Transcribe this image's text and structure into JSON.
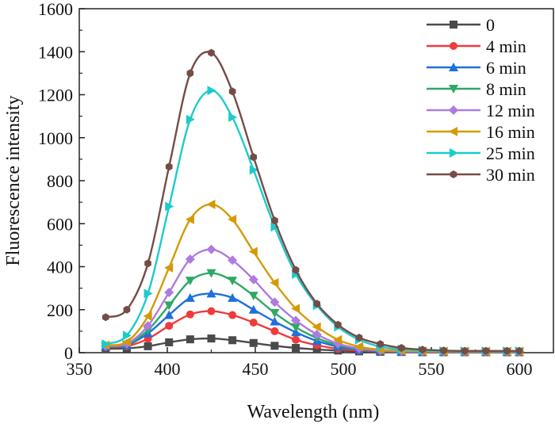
{
  "chart_data": {
    "type": "line",
    "title": "",
    "xlabel": "Wavelength (nm)",
    "ylabel": "Fluorescence intensity",
    "xlim": [
      350,
      610
    ],
    "ylim": [
      0,
      1600
    ],
    "xticks": [
      350,
      400,
      450,
      500,
      550,
      600
    ],
    "yticks": [
      0,
      200,
      400,
      600,
      800,
      1000,
      1200,
      1400,
      1600
    ],
    "grid": false,
    "legend_position": "top-right",
    "x": [
      365,
      377,
      389,
      401,
      413,
      425,
      437,
      449,
      461,
      473,
      485,
      497,
      509,
      521,
      533,
      545,
      557,
      569,
      581,
      593,
      600
    ],
    "series": [
      {
        "name": "0",
        "color": "#4a4a4a",
        "marker": "square",
        "values": [
          18,
          20,
          30,
          48,
          62,
          66,
          58,
          45,
          32,
          22,
          15,
          10,
          6,
          4,
          3,
          2,
          2,
          2,
          2,
          2,
          2
        ]
      },
      {
        "name": "4 min",
        "color": "#ef3b3b",
        "marker": "circle",
        "values": [
          25,
          30,
          65,
          125,
          178,
          193,
          175,
          140,
          100,
          60,
          35,
          18,
          10,
          6,
          4,
          3,
          3,
          3,
          3,
          3,
          3
        ]
      },
      {
        "name": "6 min",
        "color": "#1f6fdc",
        "marker": "triangle-up",
        "values": [
          28,
          35,
          90,
          175,
          255,
          275,
          255,
          200,
          145,
          95,
          55,
          28,
          14,
          8,
          5,
          4,
          4,
          4,
          4,
          4,
          4
        ]
      },
      {
        "name": "8 min",
        "color": "#2ea866",
        "marker": "triangle-down",
        "values": [
          30,
          38,
          105,
          220,
          335,
          370,
          335,
          265,
          185,
          118,
          68,
          35,
          17,
          9,
          6,
          5,
          5,
          5,
          5,
          5,
          5
        ]
      },
      {
        "name": "12 min",
        "color": "#ae7be0",
        "marker": "diamond",
        "values": [
          32,
          42,
          125,
          280,
          435,
          480,
          430,
          340,
          235,
          150,
          85,
          42,
          20,
          10,
          7,
          5,
          5,
          5,
          5,
          5,
          5
        ]
      },
      {
        "name": "16 min",
        "color": "#d49a06",
        "marker": "triangle-left",
        "values": [
          35,
          50,
          170,
          395,
          620,
          690,
          620,
          470,
          325,
          205,
          120,
          60,
          28,
          14,
          9,
          7,
          6,
          6,
          6,
          6,
          6
        ]
      },
      {
        "name": "25 min",
        "color": "#1ccbcb",
        "marker": "triangle-right",
        "values": [
          40,
          80,
          275,
          680,
          1085,
          1220,
          1095,
          850,
          585,
          365,
          220,
          120,
          60,
          28,
          15,
          10,
          8,
          7,
          7,
          7,
          7
        ]
      },
      {
        "name": "30 min",
        "color": "#754c47",
        "marker": "hexagon",
        "values": [
          165,
          200,
          415,
          865,
          1300,
          1395,
          1215,
          910,
          615,
          385,
          228,
          130,
          70,
          40,
          22,
          14,
          10,
          8,
          8,
          8,
          8
        ]
      }
    ]
  }
}
